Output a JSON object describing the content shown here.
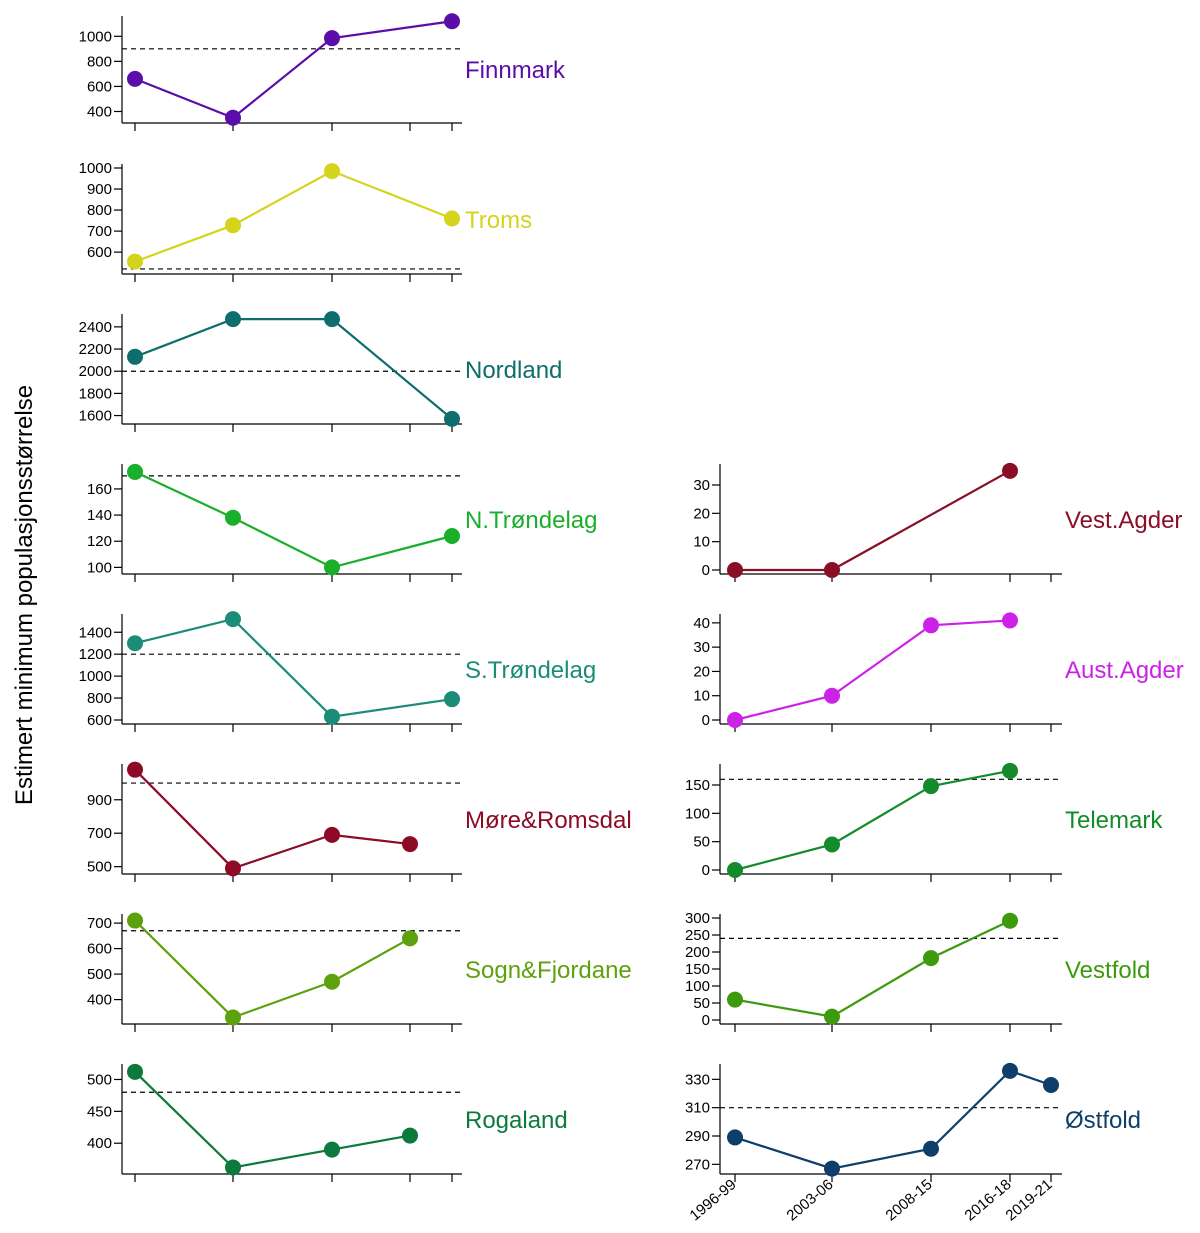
{
  "y_axis_label": "Estimert minimum populasjonsstørrelse",
  "x_tick_labels": [
    "1996-99",
    "2003-06",
    "2008-15",
    "2016-18",
    "2019-21"
  ],
  "chart_data": [
    {
      "type": "line",
      "title": "Finnmark",
      "color": "#5B0DAA",
      "x": [
        "1996-99",
        "2003-06",
        "2008-15",
        "2016-18",
        "2019-21"
      ],
      "values": [
        660,
        350,
        985,
        null,
        1120
      ],
      "reference": 900,
      "ylim": [
        340,
        1130
      ],
      "yticks": [
        400,
        600,
        800,
        1000
      ]
    },
    {
      "type": "line",
      "title": "Troms",
      "color": "#D4D41C",
      "x": [
        "1996-99",
        "2003-06",
        "2008-15",
        "2016-18",
        "2019-21"
      ],
      "values": [
        555,
        728,
        985,
        null,
        760
      ],
      "reference": 520,
      "ylim": [
        515,
        1000
      ],
      "yticks": [
        600,
        700,
        800,
        900,
        1000
      ]
    },
    {
      "type": "line",
      "title": "Nordland",
      "color": "#0E6E6E",
      "x": [
        "1996-99",
        "2003-06",
        "2008-15",
        "2016-18",
        "2019-21"
      ],
      "values": [
        2130,
        2470,
        2470,
        null,
        1570
      ],
      "reference": 2000,
      "ylim": [
        1560,
        2480
      ],
      "yticks": [
        1600,
        1800,
        2000,
        2200,
        2400
      ]
    },
    {
      "type": "line",
      "title": "N.Trøndelag",
      "color": "#1AAF2B",
      "x": [
        "1996-99",
        "2003-06",
        "2008-15",
        "2016-18",
        "2019-21"
      ],
      "values": [
        173,
        138,
        100,
        null,
        124
      ],
      "reference": 170,
      "ylim": [
        98,
        176
      ],
      "yticks": [
        100,
        120,
        140,
        160
      ]
    },
    {
      "type": "line",
      "title": "S.Trøndelag",
      "color": "#1B8C78",
      "x": [
        "1996-99",
        "2003-06",
        "2008-15",
        "2016-18",
        "2019-21"
      ],
      "values": [
        1300,
        1520,
        630,
        null,
        790
      ],
      "reference": 1200,
      "ylim": [
        600,
        1530
      ],
      "yticks": [
        600,
        800,
        1000,
        1200,
        1400
      ]
    },
    {
      "type": "line",
      "title": "Møre&Romsdal",
      "color": "#8E0B27",
      "x": [
        "1996-99",
        "2003-06",
        "2008-15",
        "2016-18",
        "2019-21"
      ],
      "values": [
        1080,
        490,
        690,
        635,
        null
      ],
      "reference": 1000,
      "ylim": [
        480,
        1090
      ],
      "yticks": [
        500,
        700,
        900
      ]
    },
    {
      "type": "line",
      "title": "Sogn&Fjordane",
      "color": "#5DA10D",
      "x": [
        "1996-99",
        "2003-06",
        "2008-15",
        "2016-18",
        "2019-21"
      ],
      "values": [
        710,
        330,
        470,
        640,
        null
      ],
      "reference": 670,
      "ylim": [
        320,
        720
      ],
      "yticks": [
        400,
        500,
        600,
        700
      ]
    },
    {
      "type": "line",
      "title": "Rogaland",
      "color": "#0B7A3C",
      "x": [
        "1996-99",
        "2003-06",
        "2008-15",
        "2016-18",
        "2019-21"
      ],
      "values": [
        512,
        362,
        390,
        412,
        null
      ],
      "reference": 480,
      "ylim": [
        358,
        518
      ],
      "yticks": [
        400,
        450,
        500
      ]
    },
    {
      "type": "line",
      "title": "Vest.Agder",
      "color": "#8B0E27",
      "x": [
        "1996-99",
        "2003-06",
        "2008-15",
        "2016-18",
        "2019-21"
      ],
      "values": [
        0,
        0,
        null,
        35,
        null
      ],
      "reference": null,
      "ylim": [
        0,
        36
      ],
      "yticks": [
        0,
        10,
        20,
        30
      ]
    },
    {
      "type": "line",
      "title": "Aust.Agder",
      "color": "#CC22E8",
      "x": [
        "1996-99",
        "2003-06",
        "2008-15",
        "2016-18",
        "2019-21"
      ],
      "values": [
        0,
        10,
        39,
        41,
        null
      ],
      "reference": null,
      "ylim": [
        0,
        42
      ],
      "yticks": [
        0,
        10,
        20,
        30,
        40
      ]
    },
    {
      "type": "line",
      "title": "Telemark",
      "color": "#138B2B",
      "x": [
        "1996-99",
        "2003-06",
        "2008-15",
        "2016-18",
        "2019-21"
      ],
      "values": [
        0,
        45,
        148,
        175,
        null
      ],
      "reference": 160,
      "ylim": [
        0,
        180
      ],
      "yticks": [
        0,
        50,
        100,
        150
      ]
    },
    {
      "type": "line",
      "title": "Vestfold",
      "color": "#3D9A0C",
      "x": [
        "1996-99",
        "2003-06",
        "2008-15",
        "2016-18",
        "2019-21"
      ],
      "values": [
        60,
        10,
        182,
        292,
        null
      ],
      "reference": 240,
      "ylim": [
        0,
        300
      ],
      "yticks": [
        0,
        50,
        100,
        150,
        200,
        250,
        300
      ]
    },
    {
      "type": "line",
      "title": "Østfold",
      "color": "#0E3F6A",
      "x": [
        "1996-99",
        "2003-06",
        "2008-15",
        "2016-18",
        "2019-21"
      ],
      "values": [
        289,
        267,
        281,
        336,
        326
      ],
      "reference": 310,
      "ylim": [
        266,
        338
      ],
      "yticks": [
        270,
        290,
        310,
        330
      ]
    }
  ]
}
